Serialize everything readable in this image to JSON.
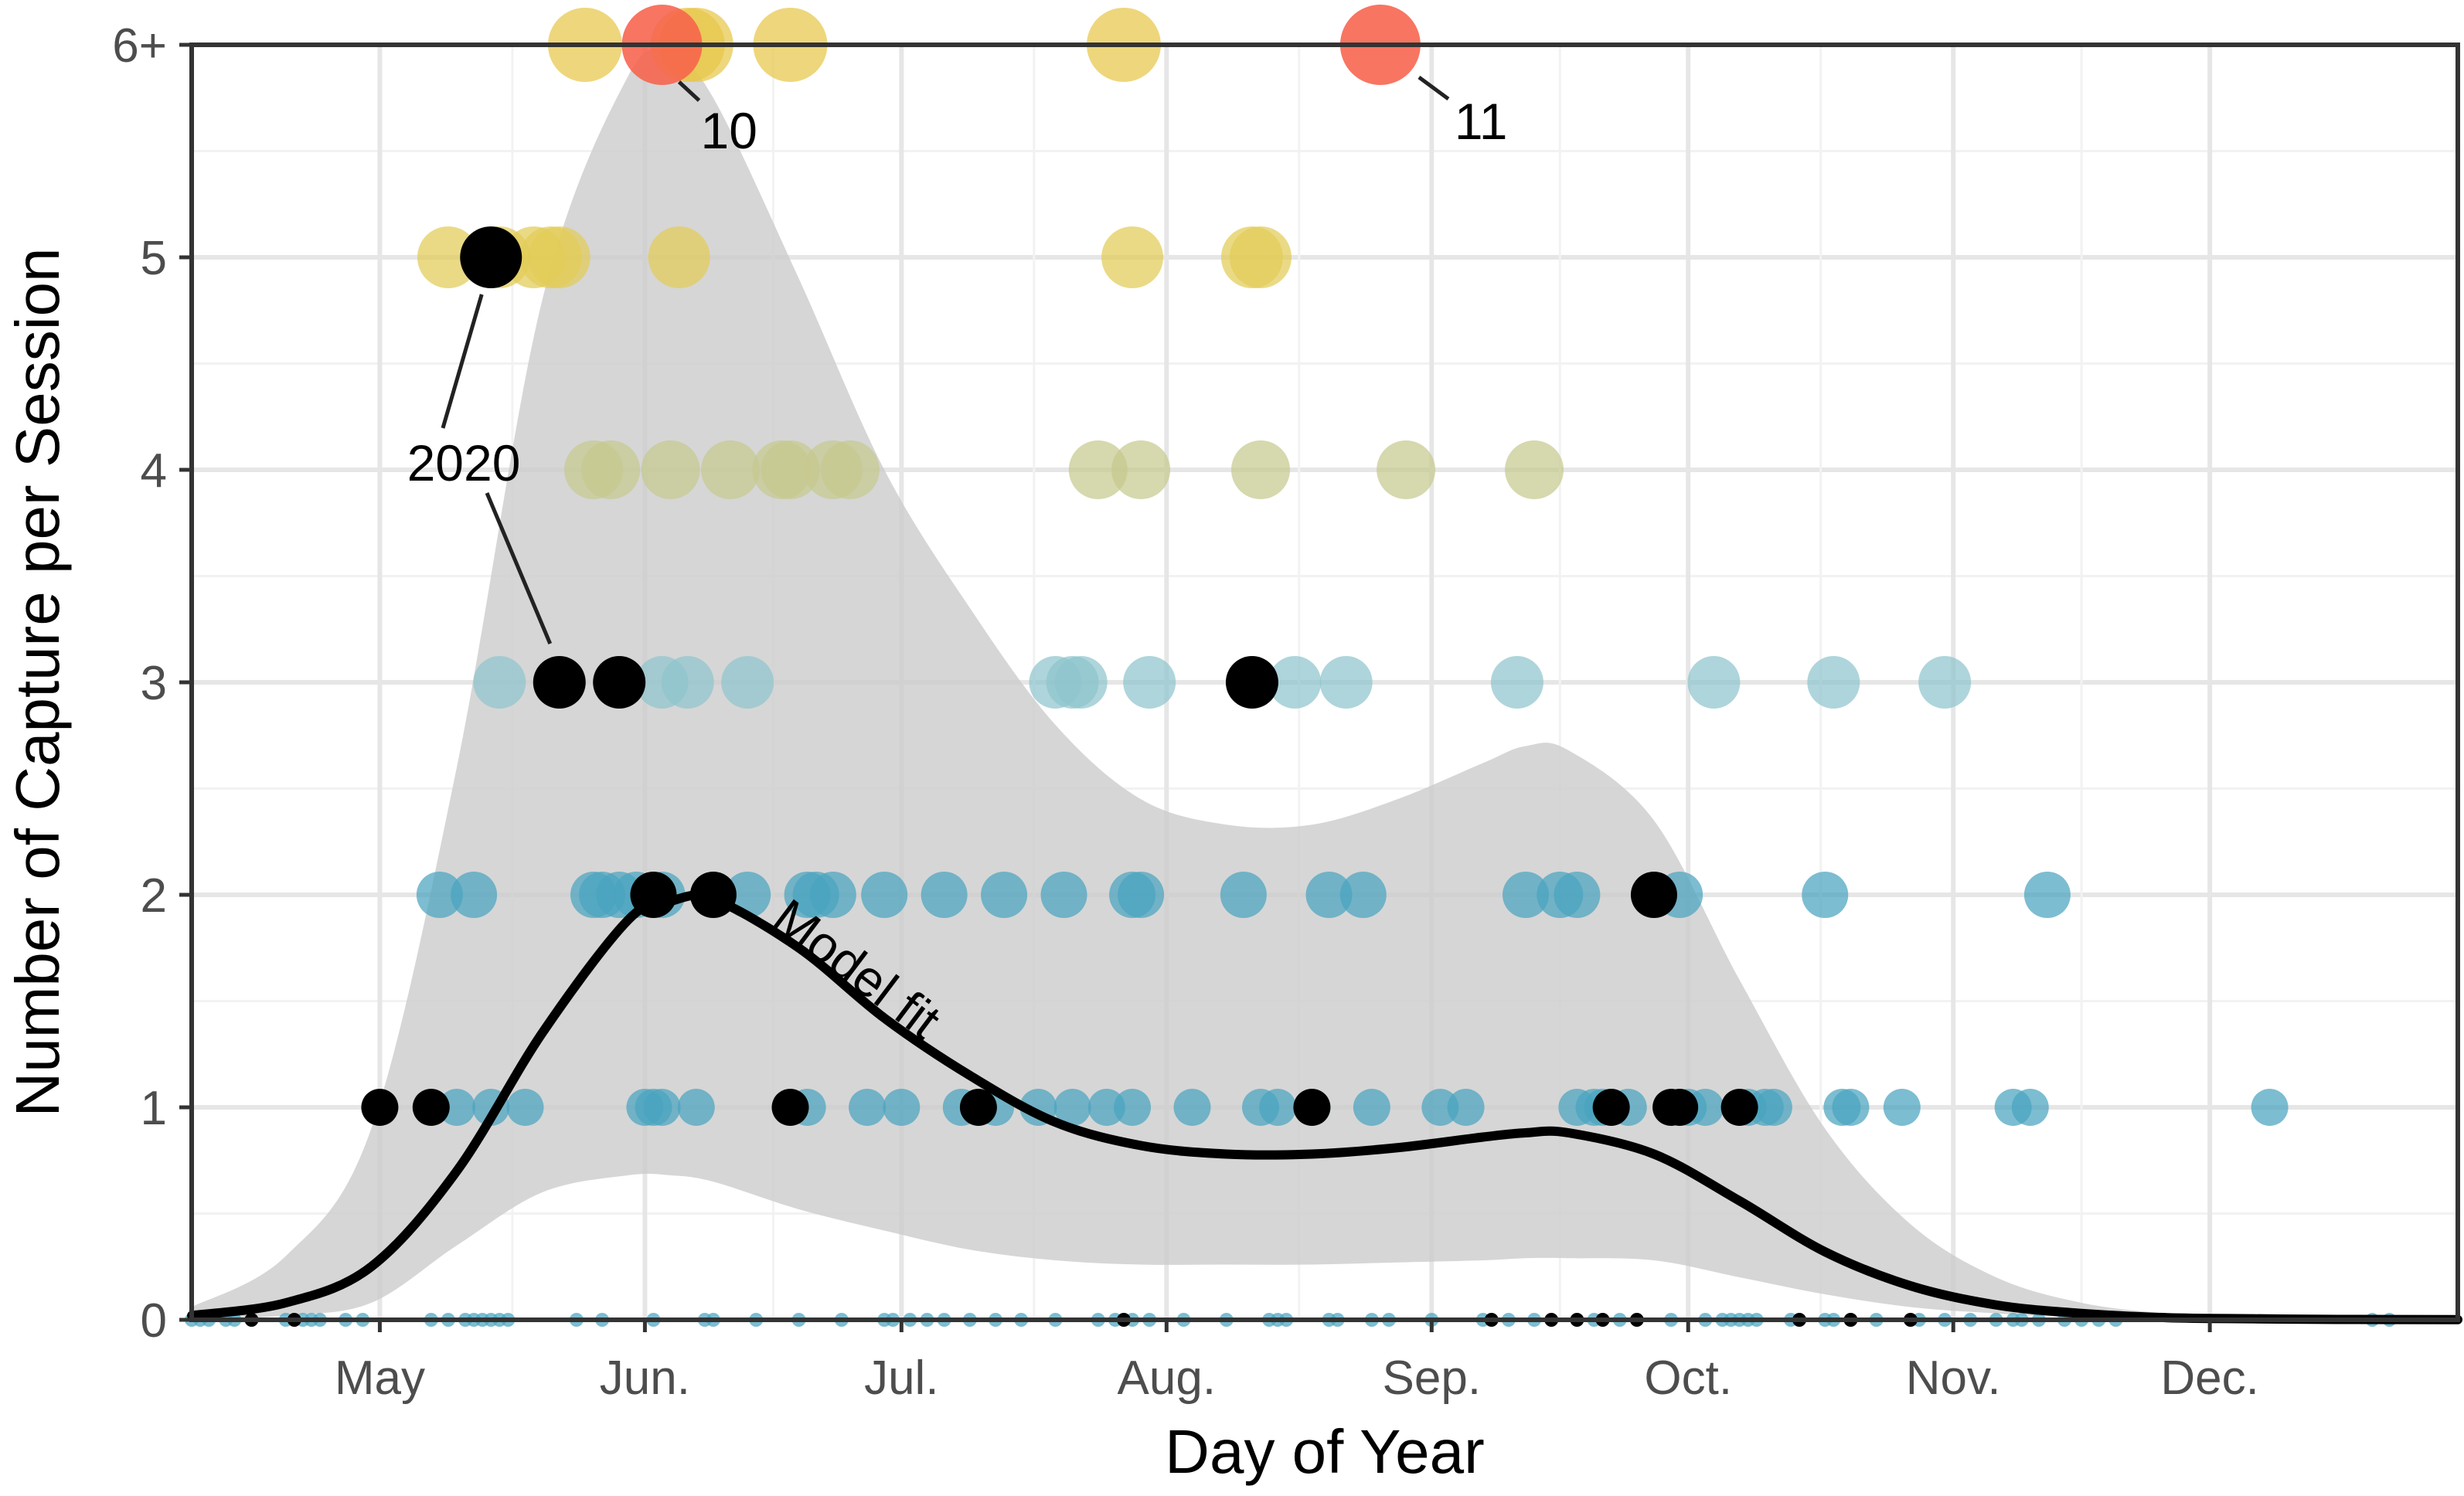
{
  "chart_data": {
    "type": "scatter",
    "title": "",
    "xlabel": "Day of Year",
    "ylabel": "Number of Capture per Session",
    "x_ticks": [
      {
        "label": "May",
        "day": 121
      },
      {
        "label": "Jun.",
        "day": 152
      },
      {
        "label": "Jul.",
        "day": 182
      },
      {
        "label": "Aug.",
        "day": 213
      },
      {
        "label": "Sep.",
        "day": 244
      },
      {
        "label": "Oct.",
        "day": 274
      },
      {
        "label": "Nov.",
        "day": 305
      },
      {
        "label": "Dec.",
        "day": 335
      }
    ],
    "y_ticks": [
      {
        "label": "0",
        "value": 0
      },
      {
        "label": "1",
        "value": 1
      },
      {
        "label": "2",
        "value": 2
      },
      {
        "label": "3",
        "value": 3
      },
      {
        "label": "4",
        "value": 4
      },
      {
        "label": "5",
        "value": 5
      },
      {
        "label": "6+",
        "value": 6
      }
    ],
    "xlim": [
      99,
      364
    ],
    "ylim": [
      0,
      6
    ],
    "grid": true,
    "colors": {
      "by_count": {
        "0": "#4aa3bf",
        "1": "#4aa3bf",
        "2": "#4aa3bf",
        "3": "#8fc5cd",
        "4": "#c6c98f",
        "5": "#e2cc57",
        "6": "#e8c64a"
      },
      "highlight_2020": "#000000",
      "extreme": "#f7624c",
      "ribbon": "#cccccc",
      "model_line": "#000000"
    },
    "series": [
      {
        "group": "other years",
        "points": [
          {
            "x": 99,
            "y": 0
          },
          {
            "x": 100,
            "y": 0
          },
          {
            "x": 101,
            "y": 0
          },
          {
            "x": 103,
            "y": 0
          },
          {
            "x": 104,
            "y": 0
          },
          {
            "x": 110,
            "y": 0
          },
          {
            "x": 112,
            "y": 0
          },
          {
            "x": 113,
            "y": 0
          },
          {
            "x": 114,
            "y": 0
          },
          {
            "x": 117,
            "y": 0
          },
          {
            "x": 119,
            "y": 0
          },
          {
            "x": 127,
            "y": 0
          },
          {
            "x": 129,
            "y": 0
          },
          {
            "x": 131,
            "y": 0
          },
          {
            "x": 132,
            "y": 0
          },
          {
            "x": 133,
            "y": 0
          },
          {
            "x": 134,
            "y": 0
          },
          {
            "x": 135,
            "y": 0
          },
          {
            "x": 136,
            "y": 0
          },
          {
            "x": 144,
            "y": 0
          },
          {
            "x": 147,
            "y": 0
          },
          {
            "x": 153,
            "y": 0
          },
          {
            "x": 159,
            "y": 0
          },
          {
            "x": 160,
            "y": 0
          },
          {
            "x": 165,
            "y": 0
          },
          {
            "x": 170,
            "y": 0
          },
          {
            "x": 175,
            "y": 0
          },
          {
            "x": 180,
            "y": 0
          },
          {
            "x": 181,
            "y": 0
          },
          {
            "x": 183,
            "y": 0
          },
          {
            "x": 185,
            "y": 0
          },
          {
            "x": 187,
            "y": 0
          },
          {
            "x": 190,
            "y": 0
          },
          {
            "x": 193,
            "y": 0
          },
          {
            "x": 196,
            "y": 0
          },
          {
            "x": 200,
            "y": 0
          },
          {
            "x": 205,
            "y": 0
          },
          {
            "x": 207,
            "y": 0
          },
          {
            "x": 209,
            "y": 0
          },
          {
            "x": 211,
            "y": 0
          },
          {
            "x": 215,
            "y": 0
          },
          {
            "x": 220,
            "y": 0
          },
          {
            "x": 225,
            "y": 0
          },
          {
            "x": 226,
            "y": 0
          },
          {
            "x": 227,
            "y": 0
          },
          {
            "x": 232,
            "y": 0
          },
          {
            "x": 233,
            "y": 0
          },
          {
            "x": 237,
            "y": 0
          },
          {
            "x": 239,
            "y": 0
          },
          {
            "x": 244,
            "y": 0
          },
          {
            "x": 250,
            "y": 0
          },
          {
            "x": 253,
            "y": 0
          },
          {
            "x": 256,
            "y": 0
          },
          {
            "x": 263,
            "y": 0
          },
          {
            "x": 266,
            "y": 0
          },
          {
            "x": 272,
            "y": 0
          },
          {
            "x": 276,
            "y": 0
          },
          {
            "x": 278,
            "y": 0
          },
          {
            "x": 279,
            "y": 0
          },
          {
            "x": 280,
            "y": 0
          },
          {
            "x": 281,
            "y": 0
          },
          {
            "x": 282,
            "y": 0
          },
          {
            "x": 286,
            "y": 0
          },
          {
            "x": 290,
            "y": 0
          },
          {
            "x": 291,
            "y": 0
          },
          {
            "x": 296,
            "y": 0
          },
          {
            "x": 301,
            "y": 0
          },
          {
            "x": 304,
            "y": 0
          },
          {
            "x": 307,
            "y": 0
          },
          {
            "x": 310,
            "y": 0
          },
          {
            "x": 312,
            "y": 0
          },
          {
            "x": 313,
            "y": 0
          },
          {
            "x": 315,
            "y": 0
          },
          {
            "x": 318,
            "y": 0
          },
          {
            "x": 320,
            "y": 0
          },
          {
            "x": 322,
            "y": 0
          },
          {
            "x": 324,
            "y": 0
          },
          {
            "x": 354,
            "y": 0
          },
          {
            "x": 356,
            "y": 0
          },
          {
            "x": 130,
            "y": 1
          },
          {
            "x": 134,
            "y": 1
          },
          {
            "x": 138,
            "y": 1
          },
          {
            "x": 152,
            "y": 1
          },
          {
            "x": 153,
            "y": 1
          },
          {
            "x": 154,
            "y": 1
          },
          {
            "x": 158,
            "y": 1
          },
          {
            "x": 171,
            "y": 1
          },
          {
            "x": 178,
            "y": 1
          },
          {
            "x": 182,
            "y": 1
          },
          {
            "x": 189,
            "y": 1
          },
          {
            "x": 193,
            "y": 1
          },
          {
            "x": 198,
            "y": 1
          },
          {
            "x": 202,
            "y": 1
          },
          {
            "x": 206,
            "y": 1
          },
          {
            "x": 209,
            "y": 1
          },
          {
            "x": 216,
            "y": 1
          },
          {
            "x": 224,
            "y": 1
          },
          {
            "x": 226,
            "y": 1
          },
          {
            "x": 230,
            "y": 1
          },
          {
            "x": 237,
            "y": 1
          },
          {
            "x": 245,
            "y": 1
          },
          {
            "x": 248,
            "y": 1
          },
          {
            "x": 261,
            "y": 1
          },
          {
            "x": 263,
            "y": 1
          },
          {
            "x": 264,
            "y": 1
          },
          {
            "x": 265,
            "y": 1
          },
          {
            "x": 267,
            "y": 1
          },
          {
            "x": 274,
            "y": 1
          },
          {
            "x": 276,
            "y": 1
          },
          {
            "x": 281,
            "y": 1
          },
          {
            "x": 283,
            "y": 1
          },
          {
            "x": 284,
            "y": 1
          },
          {
            "x": 292,
            "y": 1
          },
          {
            "x": 293,
            "y": 1
          },
          {
            "x": 299,
            "y": 1
          },
          {
            "x": 312,
            "y": 1
          },
          {
            "x": 314,
            "y": 1
          },
          {
            "x": 342,
            "y": 1
          },
          {
            "x": 128,
            "y": 2
          },
          {
            "x": 132,
            "y": 2
          },
          {
            "x": 146,
            "y": 2
          },
          {
            "x": 147,
            "y": 2
          },
          {
            "x": 149,
            "y": 2
          },
          {
            "x": 151,
            "y": 2
          },
          {
            "x": 154,
            "y": 2
          },
          {
            "x": 164,
            "y": 2
          },
          {
            "x": 171,
            "y": 2
          },
          {
            "x": 172,
            "y": 2
          },
          {
            "x": 174,
            "y": 2
          },
          {
            "x": 180,
            "y": 2
          },
          {
            "x": 187,
            "y": 2
          },
          {
            "x": 194,
            "y": 2
          },
          {
            "x": 201,
            "y": 2
          },
          {
            "x": 209,
            "y": 2
          },
          {
            "x": 210,
            "y": 2
          },
          {
            "x": 222,
            "y": 2
          },
          {
            "x": 232,
            "y": 2
          },
          {
            "x": 236,
            "y": 2
          },
          {
            "x": 255,
            "y": 2
          },
          {
            "x": 259,
            "y": 2
          },
          {
            "x": 261,
            "y": 2
          },
          {
            "x": 273,
            "y": 2
          },
          {
            "x": 290,
            "y": 2
          },
          {
            "x": 316,
            "y": 2
          },
          {
            "x": 135,
            "y": 3
          },
          {
            "x": 154,
            "y": 3
          },
          {
            "x": 157,
            "y": 3
          },
          {
            "x": 164,
            "y": 3
          },
          {
            "x": 200,
            "y": 3
          },
          {
            "x": 202,
            "y": 3
          },
          {
            "x": 203,
            "y": 3
          },
          {
            "x": 211,
            "y": 3
          },
          {
            "x": 228,
            "y": 3
          },
          {
            "x": 234,
            "y": 3
          },
          {
            "x": 254,
            "y": 3
          },
          {
            "x": 277,
            "y": 3
          },
          {
            "x": 291,
            "y": 3
          },
          {
            "x": 304,
            "y": 3
          },
          {
            "x": 146,
            "y": 4
          },
          {
            "x": 148,
            "y": 4
          },
          {
            "x": 155,
            "y": 4
          },
          {
            "x": 162,
            "y": 4
          },
          {
            "x": 168,
            "y": 4
          },
          {
            "x": 169,
            "y": 4
          },
          {
            "x": 174,
            "y": 4
          },
          {
            "x": 176,
            "y": 4
          },
          {
            "x": 205,
            "y": 4
          },
          {
            "x": 210,
            "y": 4
          },
          {
            "x": 224,
            "y": 4
          },
          {
            "x": 241,
            "y": 4
          },
          {
            "x": 256,
            "y": 4
          },
          {
            "x": 129,
            "y": 5
          },
          {
            "x": 135,
            "y": 5
          },
          {
            "x": 139,
            "y": 5
          },
          {
            "x": 141,
            "y": 5
          },
          {
            "x": 142,
            "y": 5
          },
          {
            "x": 156,
            "y": 5
          },
          {
            "x": 209,
            "y": 5
          },
          {
            "x": 223,
            "y": 5
          },
          {
            "x": 224,
            "y": 5
          },
          {
            "x": 145,
            "y": 6
          },
          {
            "x": 157,
            "y": 6
          },
          {
            "x": 158,
            "y": 6
          },
          {
            "x": 169,
            "y": 6
          },
          {
            "x": 208,
            "y": 6
          }
        ]
      },
      {
        "group": "2020",
        "points": [
          {
            "x": 106,
            "y": 0
          },
          {
            "x": 111,
            "y": 0
          },
          {
            "x": 208,
            "y": 0
          },
          {
            "x": 251,
            "y": 0
          },
          {
            "x": 258,
            "y": 0
          },
          {
            "x": 261,
            "y": 0
          },
          {
            "x": 264,
            "y": 0
          },
          {
            "x": 268,
            "y": 0
          },
          {
            "x": 287,
            "y": 0
          },
          {
            "x": 293,
            "y": 0
          },
          {
            "x": 300,
            "y": 0
          },
          {
            "x": 121,
            "y": 1
          },
          {
            "x": 127,
            "y": 1
          },
          {
            "x": 169,
            "y": 1
          },
          {
            "x": 191,
            "y": 1
          },
          {
            "x": 230,
            "y": 1
          },
          {
            "x": 265,
            "y": 1
          },
          {
            "x": 272,
            "y": 1
          },
          {
            "x": 273,
            "y": 1
          },
          {
            "x": 280,
            "y": 1
          },
          {
            "x": 153,
            "y": 2
          },
          {
            "x": 160,
            "y": 2
          },
          {
            "x": 270,
            "y": 2
          },
          {
            "x": 142,
            "y": 3
          },
          {
            "x": 149,
            "y": 3
          },
          {
            "x": 223,
            "y": 3
          },
          {
            "x": 134,
            "y": 5
          }
        ]
      },
      {
        "group": "extreme",
        "points": [
          {
            "x": 154,
            "y": 6,
            "label": "10"
          },
          {
            "x": 238,
            "y": 6,
            "label": "11"
          }
        ]
      }
    ],
    "model_fit": {
      "label": "Model fit",
      "x": [
        99,
        110,
        120,
        130,
        140,
        150,
        155,
        160,
        170,
        180,
        190,
        200,
        210,
        220,
        230,
        240,
        250,
        255,
        260,
        270,
        280,
        290,
        300,
        310,
        320,
        330,
        340,
        350,
        364
      ],
      "y": [
        0.02,
        0.08,
        0.25,
        0.7,
        1.35,
        1.88,
        1.97,
        1.98,
        1.75,
        1.42,
        1.15,
        0.93,
        0.82,
        0.78,
        0.78,
        0.81,
        0.86,
        0.88,
        0.88,
        0.78,
        0.56,
        0.32,
        0.16,
        0.07,
        0.03,
        0.01,
        0.005,
        0.002,
        0.001
      ],
      "lower": [
        0.0,
        0.02,
        0.08,
        0.35,
        0.6,
        0.68,
        0.68,
        0.65,
        0.52,
        0.42,
        0.33,
        0.28,
        0.26,
        0.26,
        0.26,
        0.27,
        0.28,
        0.29,
        0.29,
        0.28,
        0.2,
        0.12,
        0.06,
        0.03,
        0.01,
        0.0,
        0.0,
        0.0,
        0.0
      ],
      "upper": [
        0.06,
        0.3,
        0.9,
        2.6,
        4.8,
        5.85,
        5.95,
        5.75,
        4.9,
        4.0,
        3.35,
        2.8,
        2.45,
        2.33,
        2.33,
        2.45,
        2.62,
        2.7,
        2.68,
        2.35,
        1.6,
        0.9,
        0.45,
        0.2,
        0.08,
        0.03,
        0.01,
        0.005,
        0.002
      ]
    },
    "annotations": [
      {
        "text": "2020"
      },
      {
        "text": "10"
      },
      {
        "text": "11"
      }
    ]
  }
}
